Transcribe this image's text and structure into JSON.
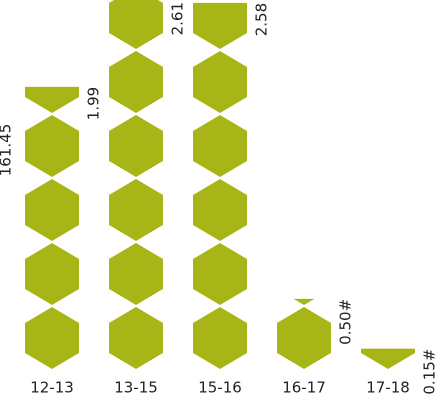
{
  "chart_data": {
    "type": "bar",
    "annotation": "161.45",
    "categories": [
      "12-13",
      "13-15",
      "15-16",
      "16-17",
      "17-18"
    ],
    "values": [
      1.99,
      2.61,
      2.58,
      0.5,
      0.15
    ],
    "value_labels": [
      "1.99",
      "2.61",
      "2.58",
      "0.50#",
      "0.15#"
    ],
    "color": "#a8b517",
    "ylim": [
      0,
      2.6
    ]
  }
}
